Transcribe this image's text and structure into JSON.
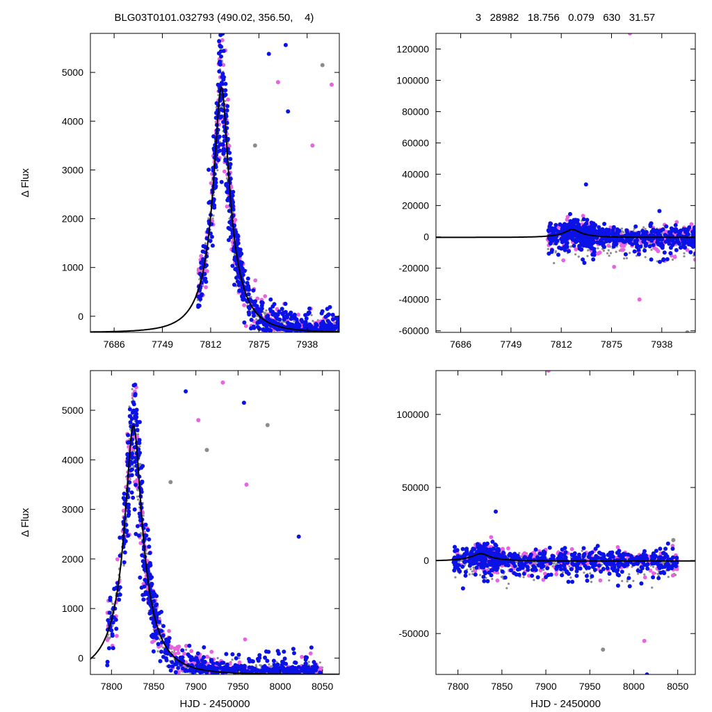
{
  "header": {
    "left_title": "BLG03T0101.032793 (490.02, 356.50,    4)",
    "right_title": "3   28982   18.756   0.079   630   31.57"
  },
  "colors": {
    "model_curve": "#000000",
    "series_gray": "#8c8c8c",
    "series_blue": "#0a12e6",
    "series_pink": "#e863e0"
  },
  "chart_data": [
    {
      "id": "top-left",
      "type": "scatter",
      "xlabel": "",
      "ylabel": "Δ Flux",
      "xlim": [
        7655,
        7980
      ],
      "ylim": [
        -330,
        5800
      ],
      "xticks": [
        7686,
        7749,
        7812,
        7875,
        7938
      ],
      "xticklabels": [
        "7686",
        "7749",
        "7812",
        "7875",
        "7938"
      ],
      "yticks": [
        0,
        1000,
        2000,
        3000,
        4000,
        5000
      ],
      "yticklabels": [
        "0",
        "1000",
        "2000",
        "3000",
        "4000",
        "5000"
      ],
      "grid": false,
      "model": {
        "t0": 7826,
        "fwhm_rise": 22,
        "fwhm_fall": 22,
        "peak": 4700,
        "baseline": -330
      },
      "data_range": [
        7795,
        7982
      ],
      "outliers": [
        [
          7888,
          5380
        ],
        [
          7900,
          4800
        ],
        [
          7870,
          3500
        ],
        [
          7913,
          4200
        ],
        [
          7945,
          3500
        ],
        [
          7958,
          5150
        ],
        [
          7910,
          5560
        ],
        [
          7970,
          4750
        ]
      ]
    },
    {
      "id": "top-right",
      "type": "scatter",
      "xlabel": "",
      "ylabel": "",
      "xlim": [
        7655,
        7980
      ],
      "ylim": [
        -61000,
        130000
      ],
      "xticks": [
        7686,
        7749,
        7812,
        7875,
        7938
      ],
      "xticklabels": [
        "7686",
        "7749",
        "7812",
        "7875",
        "7938"
      ],
      "yticks": [
        -60000,
        -40000,
        -20000,
        0,
        20000,
        40000,
        60000,
        80000,
        100000,
        120000
      ],
      "yticklabels": [
        "-60000",
        "-40000",
        "-20000",
        "0",
        "20000",
        "40000",
        "60000",
        "80000",
        "100000",
        "120000"
      ],
      "grid": false,
      "model": {
        "t0": 7826,
        "fwhm_rise": 22,
        "fwhm_fall": 22,
        "peak": 4700,
        "baseline": -330
      },
      "data_range": [
        7795,
        7982
      ],
      "outliers": [
        [
          7843,
          33500
        ],
        [
          7898,
          130000
        ],
        [
          7970,
          -61000
        ],
        [
          7935,
          16500
        ],
        [
          7910,
          -40000
        ]
      ]
    },
    {
      "id": "bottom-left",
      "type": "scatter",
      "xlabel": "HJD - 2450000",
      "ylabel": "Δ Flux",
      "xlim": [
        7775,
        8070
      ],
      "ylim": [
        -330,
        5800
      ],
      "xticks": [
        7800,
        7850,
        7900,
        7950,
        8000,
        8050
      ],
      "xticklabels": [
        "7800",
        "7850",
        "7900",
        "7950",
        "8000",
        "8050"
      ],
      "yticks": [
        0,
        1000,
        2000,
        3000,
        4000,
        5000
      ],
      "yticklabels": [
        "0",
        "1000",
        "2000",
        "3000",
        "4000",
        "5000"
      ],
      "grid": false,
      "model": {
        "t0": 7826,
        "fwhm_rise": 22,
        "fwhm_fall": 22,
        "peak": 4700,
        "baseline": -330
      },
      "data_range": [
        7795,
        8050
      ],
      "outliers": [
        [
          7888,
          5380
        ],
        [
          7903,
          4800
        ],
        [
          7913,
          4200
        ],
        [
          7957,
          5150
        ],
        [
          7932,
          5560
        ],
        [
          7985,
          4700
        ],
        [
          8022,
          2450
        ],
        [
          7960,
          3500
        ],
        [
          7870,
          3550
        ]
      ]
    },
    {
      "id": "bottom-right",
      "type": "scatter",
      "xlabel": "HJD - 2450000",
      "ylabel": "",
      "xlim": [
        7775,
        8070
      ],
      "ylim": [
        -78000,
        130000
      ],
      "xticks": [
        7800,
        7850,
        7900,
        7950,
        8000,
        8050
      ],
      "xticklabels": [
        "7800",
        "7850",
        "7900",
        "7950",
        "8000",
        "8050"
      ],
      "yticks": [
        -50000,
        0,
        50000,
        100000
      ],
      "yticklabels": [
        "-50000",
        "0",
        "50000",
        "100000"
      ],
      "grid": false,
      "model": {
        "t0": 7826,
        "fwhm_rise": 22,
        "fwhm_fall": 22,
        "peak": 4700,
        "baseline": -330
      },
      "data_range": [
        7795,
        8050
      ],
      "outliers": [
        [
          7843,
          33500
        ],
        [
          7903,
          130000
        ],
        [
          7965,
          -61000
        ],
        [
          8015,
          -78000
        ],
        [
          8012,
          -55000
        ],
        [
          8045,
          14000
        ],
        [
          8030,
          8000
        ]
      ]
    }
  ]
}
